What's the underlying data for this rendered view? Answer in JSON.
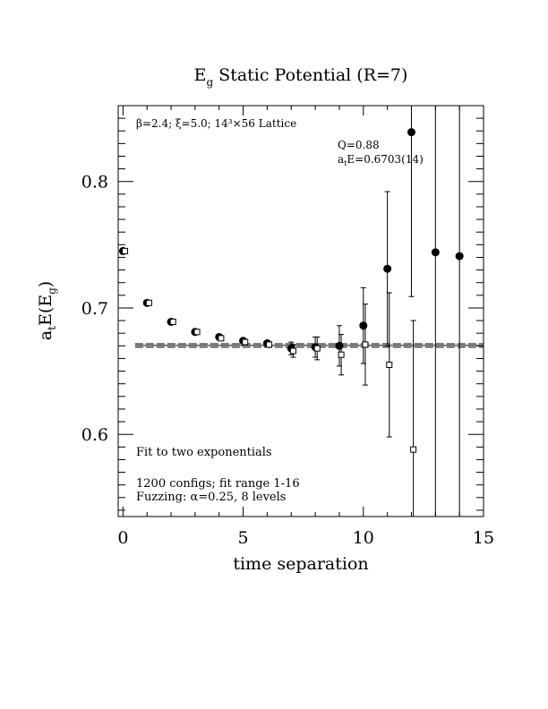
{
  "chart_data": {
    "type": "scatter",
    "title_main": "E",
    "title_sub": "g",
    "title_rest": " Static Potential (R=7)",
    "xlabel": "time separation",
    "ylabel_main": "a",
    "ylabel_sub1": "t",
    "ylabel_mid": "E(E",
    "ylabel_sub2": "g",
    "ylabel_end": ")",
    "xlim": [
      -0.2,
      15.0
    ],
    "ylim": [
      0.535,
      0.86
    ],
    "xticks": [
      0,
      5,
      10,
      15
    ],
    "yticks": [
      0.6,
      0.7,
      0.8
    ],
    "xtick_labels": [
      "0",
      "5",
      "10",
      "15"
    ],
    "ytick_labels": [
      "0.6",
      "0.7",
      "0.8"
    ],
    "annotation_lattice": "β=2.4; ξ=5.0; 14³×56 Lattice",
    "annotation_q": "Q=0.88",
    "annotation_fit_main": "a",
    "annotation_fit_sub": "t",
    "annotation_fit_rest": "E=0.6703(14)",
    "note_fit": "Fit to two exponentials",
    "note_configs": "1200 configs; fit range 1-16",
    "note_fuzzing": "Fuzzing: α=0.25, 8 levels",
    "fit_value": 0.6703,
    "fit_error": 0.0014,
    "fit_x_range": [
      0.5,
      15.0
    ],
    "series": [
      {
        "marker": "filled-circle",
        "points": [
          {
            "x": 0,
            "y": 0.745,
            "err": 0.001
          },
          {
            "x": 1,
            "y": 0.704,
            "err": 0.001
          },
          {
            "x": 2,
            "y": 0.689,
            "err": 0.001
          },
          {
            "x": 3,
            "y": 0.681,
            "err": 0.001
          },
          {
            "x": 4,
            "y": 0.677,
            "err": 0.002
          },
          {
            "x": 5,
            "y": 0.674,
            "err": 0.002
          },
          {
            "x": 6,
            "y": 0.672,
            "err": 0.003
          },
          {
            "x": 7,
            "y": 0.668,
            "err": 0.005
          },
          {
            "x": 8,
            "y": 0.669,
            "err": 0.008
          },
          {
            "x": 9,
            "y": 0.67,
            "err": 0.016
          },
          {
            "x": 10,
            "y": 0.686,
            "err": 0.03
          },
          {
            "x": 11,
            "y": 0.731,
            "err": 0.061
          },
          {
            "x": 12,
            "y": 0.839,
            "err": 0.13
          },
          {
            "x": 13,
            "y": 0.744,
            "err": 0.5
          },
          {
            "x": 14,
            "y": 0.741,
            "err": 0.5
          }
        ]
      },
      {
        "marker": "open-square",
        "points": [
          {
            "x": 0,
            "y": 0.745,
            "err": 0.001
          },
          {
            "x": 1,
            "y": 0.704,
            "err": 0.001
          },
          {
            "x": 2,
            "y": 0.689,
            "err": 0.001
          },
          {
            "x": 3,
            "y": 0.681,
            "err": 0.001
          },
          {
            "x": 4,
            "y": 0.676,
            "err": 0.002
          },
          {
            "x": 5,
            "y": 0.673,
            "err": 0.002
          },
          {
            "x": 6,
            "y": 0.671,
            "err": 0.003
          },
          {
            "x": 7,
            "y": 0.666,
            "err": 0.005
          },
          {
            "x": 8,
            "y": 0.668,
            "err": 0.009
          },
          {
            "x": 9,
            "y": 0.663,
            "err": 0.016
          },
          {
            "x": 10,
            "y": 0.671,
            "err": 0.032
          },
          {
            "x": 11,
            "y": 0.655,
            "err": 0.057
          },
          {
            "x": 12,
            "y": 0.588,
            "err": 0.102
          }
        ]
      }
    ]
  }
}
